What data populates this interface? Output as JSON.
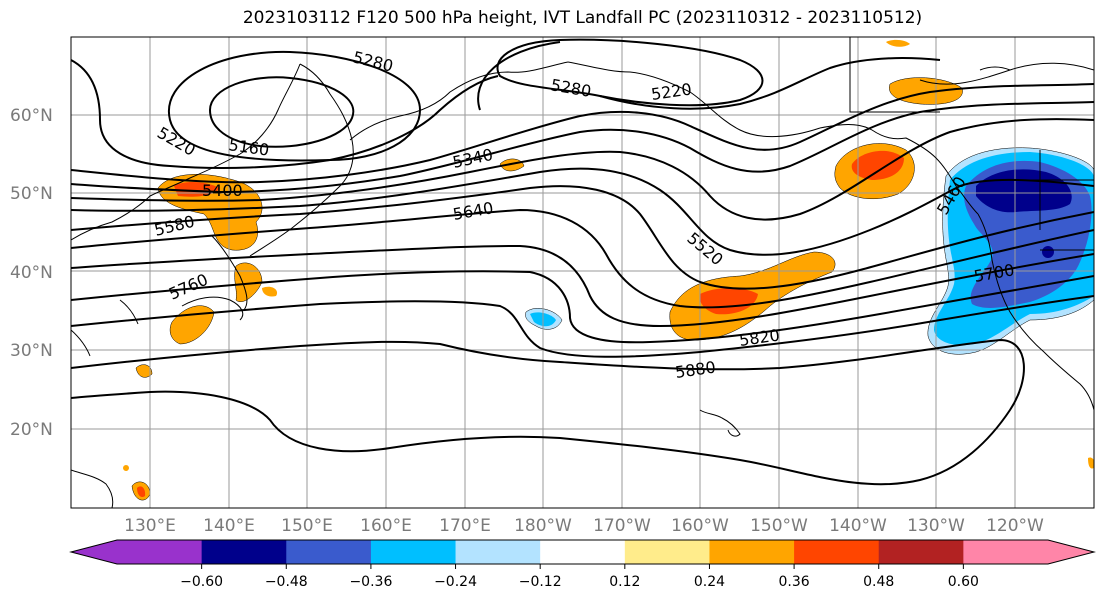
{
  "title": "2023103112 F120 500 hPa height, IVT Landfall PC (2023110312 - 2023110512)",
  "lat_labels": [
    "60°N",
    "50°N",
    "40°N",
    "30°N",
    "20°N"
  ],
  "lon_labels": [
    "130°E",
    "140°E",
    "150°E",
    "160°E",
    "170°E",
    "180°W",
    "170°W",
    "160°W",
    "150°W",
    "140°W",
    "130°W",
    "120°W"
  ],
  "contour_labels": [
    "5280",
    "5220",
    "5160",
    "5280",
    "5220",
    "5400",
    "5340",
    "5580",
    "5640",
    "5520",
    "5760",
    "5700",
    "5820",
    "5880",
    "5460"
  ],
  "colorbar": {
    "ticks": [
      "−0.60",
      "−0.48",
      "−0.36",
      "−0.24",
      "−0.12",
      "0.12",
      "0.24",
      "0.36",
      "0.48",
      "0.60"
    ],
    "colors": [
      "#9932cc",
      "#00008b",
      "#3a5bcd",
      "#00bfff",
      "#b3e3ff",
      "#ffffff",
      "#ffec8b",
      "#ffa500",
      "#ff4500",
      "#b22222",
      "#ff85a8"
    ]
  }
}
